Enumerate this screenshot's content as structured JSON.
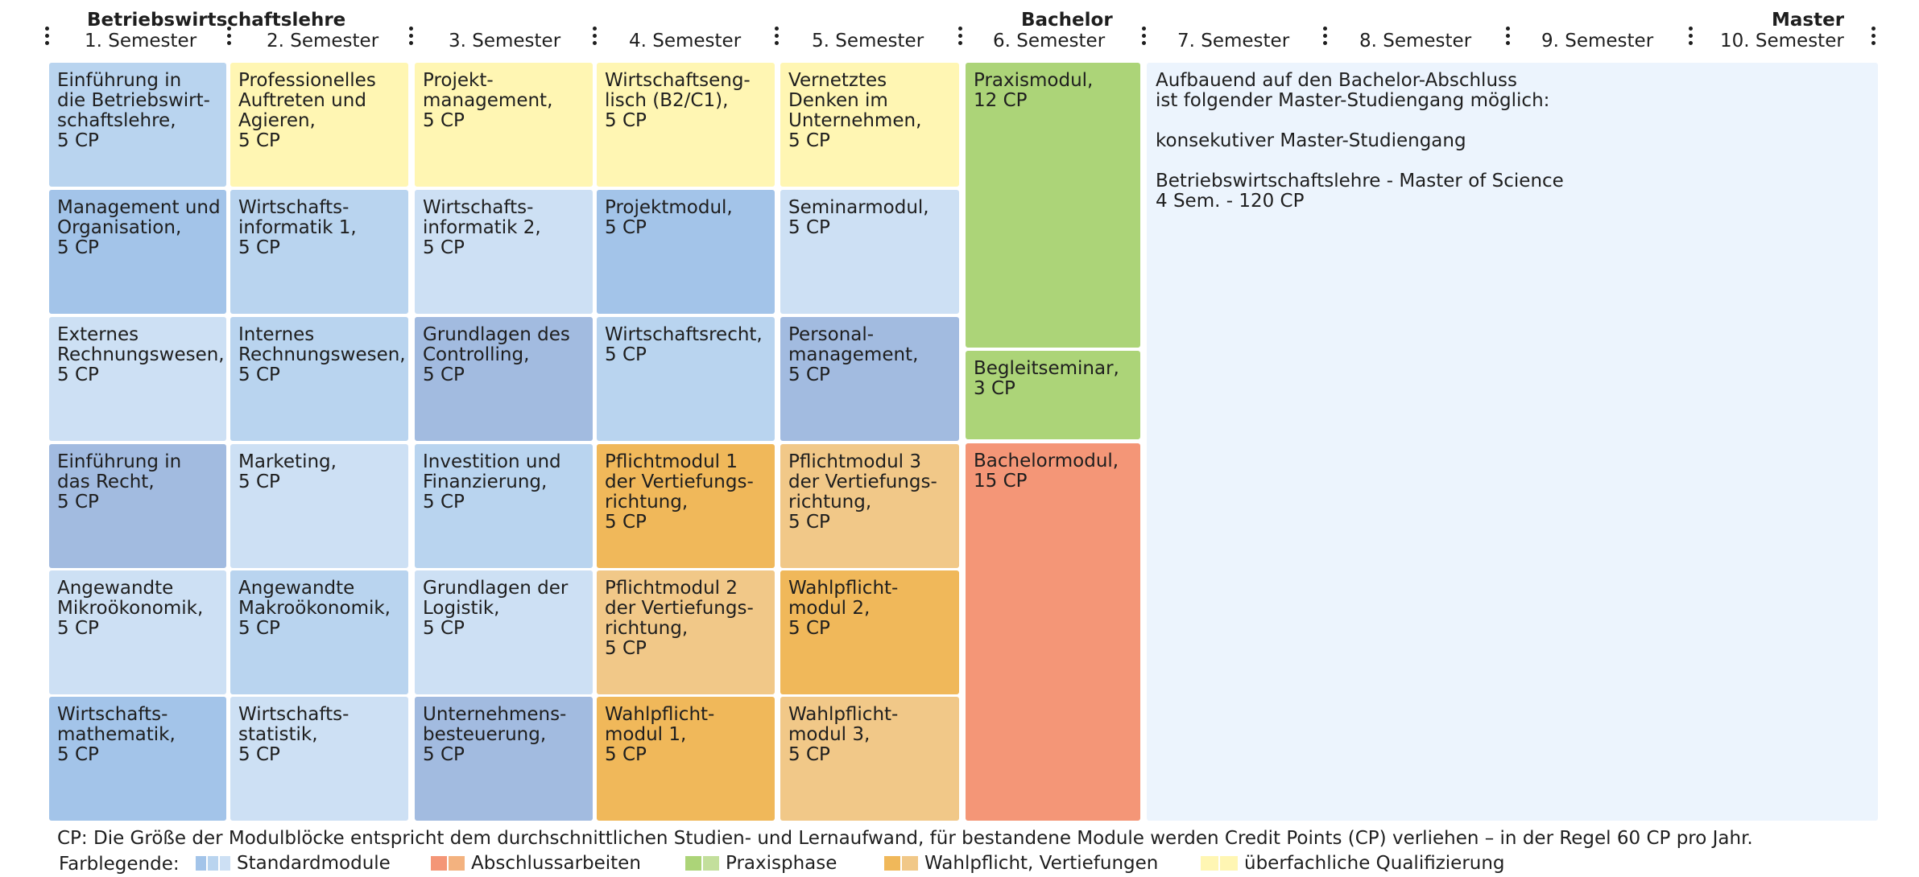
{
  "header": {
    "program_title": "Betriebswirtschaftslehre",
    "bachelor_label": "Bachelor",
    "master_label": "Master",
    "semesters": [
      "1. Semester",
      "2. Semester",
      "3. Semester",
      "4. Semester",
      "5. Semester",
      "6. Semester",
      "7. Semester",
      "8. Semester",
      "9. Semester",
      "10. Semester"
    ]
  },
  "colors": {
    "standard_1": "#a3c4e9",
    "standard_2": "#b9d4ef",
    "standard_3": "#cde0f4",
    "standard_4": "#a2bbe0",
    "thesis": "#f49677",
    "practice": "#acd478",
    "elective_dark": "#f0b85a",
    "elective_light": "#f1c888",
    "qualification": "#fff6b3",
    "master_bg": "#ecf4fd"
  },
  "modules": [
    {
      "sem": 1,
      "row": 1,
      "lines": [
        "Einführung in",
        "die Betriebswirt-",
        "schaftslehre,",
        " 5 CP"
      ],
      "color": "standard_2"
    },
    {
      "sem": 1,
      "row": 2,
      "lines": [
        "Management und",
        "Organisation,",
        "5 CP"
      ],
      "color": "standard_1"
    },
    {
      "sem": 1,
      "row": 3,
      "lines": [
        "Externes",
        "Rechnungswesen,",
        "5 CP"
      ],
      "color": "standard_3"
    },
    {
      "sem": 1,
      "row": 4,
      "lines": [
        "Einführung in",
        "das Recht,",
        "5 CP"
      ],
      "color": "standard_4"
    },
    {
      "sem": 1,
      "row": 5,
      "lines": [
        "Angewandte",
        "Mikroökonomik,",
        "5 CP"
      ],
      "color": "standard_3"
    },
    {
      "sem": 1,
      "row": 6,
      "lines": [
        "Wirtschafts-",
        "mathematik,",
        "5 CP"
      ],
      "color": "standard_1"
    },
    {
      "sem": 2,
      "row": 1,
      "lines": [
        "Professionelles",
        "Auftreten und",
        "Agieren,",
        "5 CP"
      ],
      "color": "qualification"
    },
    {
      "sem": 2,
      "row": 2,
      "lines": [
        "Wirtschafts-",
        "informatik 1,",
        "5 CP"
      ],
      "color": "standard_2"
    },
    {
      "sem": 2,
      "row": 3,
      "lines": [
        "Internes",
        "Rechnungswesen,",
        "5 CP"
      ],
      "color": "standard_2"
    },
    {
      "sem": 2,
      "row": 4,
      "lines": [
        "Marketing,",
        "5 CP"
      ],
      "color": "standard_3"
    },
    {
      "sem": 2,
      "row": 5,
      "lines": [
        "Angewandte",
        "Makroökonomik,",
        "5 CP"
      ],
      "color": "standard_2"
    },
    {
      "sem": 2,
      "row": 6,
      "lines": [
        "Wirtschafts-",
        "statistik,",
        "5 CP"
      ],
      "color": "standard_3"
    },
    {
      "sem": 3,
      "row": 1,
      "lines": [
        "Projekt-",
        "management,",
        "5 CP"
      ],
      "color": "qualification"
    },
    {
      "sem": 3,
      "row": 2,
      "lines": [
        "Wirtschafts-",
        "informatik 2,",
        "5 CP"
      ],
      "color": "standard_3"
    },
    {
      "sem": 3,
      "row": 3,
      "lines": [
        "Grundlagen des",
        "Controlling,",
        "5 CP"
      ],
      "color": "standard_4"
    },
    {
      "sem": 3,
      "row": 4,
      "lines": [
        "Investition und",
        "Finanzierung,",
        "5 CP"
      ],
      "color": "standard_2"
    },
    {
      "sem": 3,
      "row": 5,
      "lines": [
        "Grundlagen der",
        "Logistik,",
        "5 CP"
      ],
      "color": "standard_3"
    },
    {
      "sem": 3,
      "row": 6,
      "lines": [
        "Unternehmens-",
        "besteuerung,",
        "5 CP"
      ],
      "color": "standard_4"
    },
    {
      "sem": 4,
      "row": 1,
      "lines": [
        "Wirtschaftseng-",
        "lisch (B2/C1),",
        "5 CP"
      ],
      "color": "qualification"
    },
    {
      "sem": 4,
      "row": 2,
      "lines": [
        "Projektmodul,",
        "5 CP"
      ],
      "color": "standard_1"
    },
    {
      "sem": 4,
      "row": 3,
      "lines": [
        "Wirtschaftsrecht,",
        "5 CP"
      ],
      "color": "standard_2"
    },
    {
      "sem": 4,
      "row": 4,
      "lines": [
        "Pflichtmodul 1",
        "der Vertiefungs-",
        "richtung,",
        "5 CP"
      ],
      "color": "elective_dark"
    },
    {
      "sem": 4,
      "row": 5,
      "lines": [
        "Pflichtmodul 2",
        "der Vertiefungs-",
        "richtung,",
        "5 CP"
      ],
      "color": "elective_light"
    },
    {
      "sem": 4,
      "row": 6,
      "lines": [
        "Wahlpflicht-",
        "modul 1,",
        "5 CP"
      ],
      "color": "elective_dark"
    },
    {
      "sem": 5,
      "row": 1,
      "lines": [
        "Vernetztes",
        "Denken im",
        "Unternehmen,",
        "5 CP"
      ],
      "color": "qualification"
    },
    {
      "sem": 5,
      "row": 2,
      "lines": [
        "Seminarmodul,",
        "5 CP"
      ],
      "color": "standard_3"
    },
    {
      "sem": 5,
      "row": 3,
      "lines": [
        "Personal-",
        "management,",
        "5 CP"
      ],
      "color": "standard_4"
    },
    {
      "sem": 5,
      "row": 4,
      "lines": [
        "Pflichtmodul 3",
        "der Vertiefungs-",
        "richtung,",
        "5 CP"
      ],
      "color": "elective_light"
    },
    {
      "sem": 5,
      "row": 5,
      "lines": [
        "Wahlpflicht-",
        "modul 2,",
        "5 CP"
      ],
      "color": "elective_dark"
    },
    {
      "sem": 5,
      "row": 6,
      "lines": [
        "Wahlpflicht-",
        "modul 3,",
        "5 CP"
      ],
      "color": "elective_light"
    }
  ],
  "sem6": {
    "praxis": {
      "lines": [
        "Praxismodul,",
        "12 CP"
      ],
      "color": "practice"
    },
    "begleit": {
      "lines": [
        "Begleitseminar,",
        "3 CP"
      ],
      "color": "practice"
    },
    "bachelor": {
      "lines": [
        "Bachelormodul,",
        "15 CP"
      ],
      "color": "thesis"
    }
  },
  "master_info": {
    "intro_1": "Aufbauend auf den Bachelor-Abschluss",
    "intro_2": "ist folgender Master-Studiengang möglich:",
    "type": "konsekutiver Master-Studiengang",
    "program": "Betriebswirtschaftslehre - Master of Science",
    "duration": "4 Sem. - 120 CP"
  },
  "footer": {
    "cp_note": "CP: Die Größe der Modulblöcke entspricht dem durchschnittlichen Studien- und Lernaufwand, für bestandene Module werden Credit Points (CP) verliehen – in der Regel 60 CP pro Jahr.",
    "legend_title": "Farblegende:",
    "legend": [
      {
        "label": "Standardmodule",
        "swatches": [
          "#a3c4e9",
          "#b9d4ef",
          "#cde0f4"
        ]
      },
      {
        "label": "Abschlussarbeiten",
        "swatches": [
          "#f49677",
          "#f3b27f"
        ]
      },
      {
        "label": "Praxisphase",
        "swatches": [
          "#acd478",
          "#c3df9c"
        ]
      },
      {
        "label": "Wahlpflicht, Vertiefungen",
        "swatches": [
          "#f0b85a",
          "#f1c888"
        ]
      },
      {
        "label": "überfachliche Qualifizierung",
        "swatches": [
          "#fff6b3",
          "#fff6b3"
        ]
      }
    ]
  }
}
